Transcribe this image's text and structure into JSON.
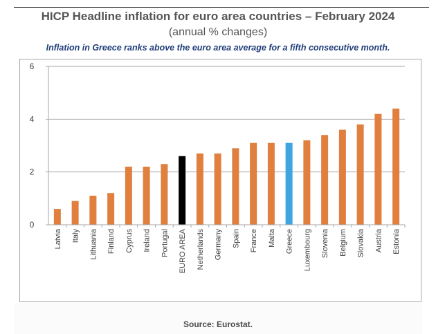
{
  "header": {
    "title": "HICP Headline inflation for euro area countries – February 2024",
    "subtitle": "(annual % changes)",
    "note": "Inflation in Greece ranks above the euro area average for a fifth consecutive month."
  },
  "footer": {
    "source": "Source: Eurostat."
  },
  "colors": {
    "default_bar": "#e07f3e",
    "euro_area_bar": "#000000",
    "greece_bar": "#3fa4e2",
    "gridline": "#a6a6a6",
    "title": "#555555",
    "note": "#1f3d7a"
  },
  "chart_data": {
    "type": "bar",
    "title": "HICP Headline inflation for euro area countries – February 2024",
    "subtitle": "(annual % changes)",
    "xlabel": "",
    "ylabel": "",
    "ylim": [
      0,
      6
    ],
    "yticks": [
      0,
      2,
      4,
      6
    ],
    "grid": true,
    "legend": "none",
    "categories": [
      "Latvia",
      "Italy",
      "Lithuania",
      "Finland",
      "Cyprus",
      "Ireland",
      "Portugal",
      "EURO AREA",
      "Netherlands",
      "Germany",
      "Spain",
      "France",
      "Malta",
      "Greece",
      "Luxembourg",
      "Slovenia",
      "Belgium",
      "Slovakia",
      "Austria",
      "Estonia"
    ],
    "values": [
      0.6,
      0.9,
      1.1,
      1.2,
      2.2,
      2.2,
      2.3,
      2.6,
      2.7,
      2.7,
      2.9,
      3.1,
      3.1,
      3.1,
      3.2,
      3.4,
      3.6,
      3.8,
      4.2,
      4.4
    ],
    "highlight": {
      "EURO AREA": "euro_area_bar",
      "Greece": "greece_bar"
    }
  }
}
